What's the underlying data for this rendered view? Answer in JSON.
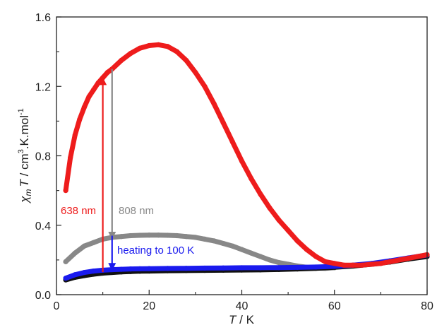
{
  "chart_data": {
    "type": "scatter",
    "title": "",
    "xlabel": "T / K",
    "ylabel": "χmT / cm3.K.mol-1",
    "xlabel_parts": {
      "var": "T",
      "rest": " / K"
    },
    "ylabel_parts": {
      "chi": "χ",
      "sub": "m",
      "var": "T",
      "rest1": " / cm",
      "sup1": "3",
      "rest2": ".K.mol",
      "sup2": "-1"
    },
    "xlim": [
      0,
      80
    ],
    "ylim": [
      0.0,
      1.6
    ],
    "xticks": [
      0,
      20,
      40,
      60,
      80
    ],
    "yticks": [
      0.0,
      0.4,
      0.8,
      1.2,
      1.6
    ],
    "xtick_labels": [
      "0",
      "20",
      "40",
      "60",
      "80"
    ],
    "ytick_labels": [
      "0.0",
      "0.4",
      "0.8",
      "1.2",
      "1.6"
    ],
    "grid": false,
    "series": [
      {
        "color": "#ee1c1c",
        "x": [
          2,
          3,
          4,
          5,
          6,
          7,
          8,
          9,
          10,
          11,
          12,
          14,
          16,
          18,
          20,
          22,
          24,
          26,
          28,
          30,
          32,
          34,
          36,
          38,
          40,
          42,
          44,
          46,
          48,
          50,
          52,
          54,
          56,
          58,
          60,
          62,
          64,
          66,
          68,
          70,
          72,
          74,
          76,
          78,
          80
        ],
        "y": [
          0.6,
          0.79,
          0.92,
          1.01,
          1.08,
          1.14,
          1.18,
          1.22,
          1.25,
          1.28,
          1.3,
          1.35,
          1.39,
          1.42,
          1.435,
          1.44,
          1.43,
          1.4,
          1.35,
          1.28,
          1.2,
          1.1,
          0.99,
          0.88,
          0.77,
          0.67,
          0.58,
          0.5,
          0.43,
          0.37,
          0.31,
          0.26,
          0.22,
          0.19,
          0.18,
          0.17,
          0.17,
          0.17,
          0.175,
          0.18,
          0.19,
          0.2,
          0.21,
          0.22,
          0.23
        ]
      },
      {
        "color": "#888888",
        "x": [
          2,
          4,
          6,
          8,
          10,
          12,
          14,
          16,
          18,
          20,
          22,
          24,
          26,
          28,
          30,
          32,
          34,
          36,
          38,
          40,
          42,
          44,
          46,
          48,
          50,
          52,
          54,
          56,
          58,
          60
        ],
        "y": [
          0.19,
          0.24,
          0.28,
          0.3,
          0.32,
          0.33,
          0.335,
          0.34,
          0.342,
          0.343,
          0.343,
          0.342,
          0.34,
          0.335,
          0.33,
          0.32,
          0.31,
          0.295,
          0.28,
          0.26,
          0.24,
          0.22,
          0.2,
          0.185,
          0.175,
          0.165,
          0.158,
          0.153,
          0.152,
          0.155
        ]
      },
      {
        "color": "#111111",
        "x": [
          2,
          4,
          6,
          8,
          10,
          12,
          14,
          16,
          18,
          20,
          24,
          28,
          32,
          36,
          40,
          44,
          48,
          52,
          56,
          60,
          64,
          68,
          72,
          76,
          80
        ],
        "y": [
          0.085,
          0.1,
          0.11,
          0.118,
          0.124,
          0.128,
          0.131,
          0.133,
          0.135,
          0.136,
          0.138,
          0.139,
          0.14,
          0.141,
          0.142,
          0.143,
          0.145,
          0.148,
          0.152,
          0.158,
          0.165,
          0.175,
          0.188,
          0.205,
          0.22
        ]
      },
      {
        "color": "#1a1aee",
        "x": [
          2,
          4,
          6,
          8,
          10,
          12,
          14,
          16,
          18,
          20,
          24,
          28,
          32,
          36,
          40,
          44,
          48,
          52,
          56,
          60,
          64,
          68,
          72,
          76,
          80
        ],
        "y": [
          0.095,
          0.115,
          0.128,
          0.136,
          0.141,
          0.144,
          0.146,
          0.148,
          0.149,
          0.15,
          0.151,
          0.152,
          0.153,
          0.154,
          0.155,
          0.155,
          0.156,
          0.157,
          0.159,
          0.163,
          0.17,
          0.18,
          0.195,
          0.212,
          0.228
        ]
      }
    ],
    "annotations": [
      {
        "text": "638 nm",
        "color": "#ee1c1c",
        "arrow": {
          "x": 10,
          "y_from": 0.13,
          "y_to": 1.23
        }
      },
      {
        "text": "808 nm",
        "color": "#888888",
        "arrow": {
          "x": 12,
          "y_from": 1.3,
          "y_to": 0.34
        }
      },
      {
        "text": "heating to 100 K",
        "color": "#1a1aee",
        "arrow": {
          "x": 12,
          "y_from": 0.34,
          "y_to": 0.16
        }
      }
    ]
  }
}
